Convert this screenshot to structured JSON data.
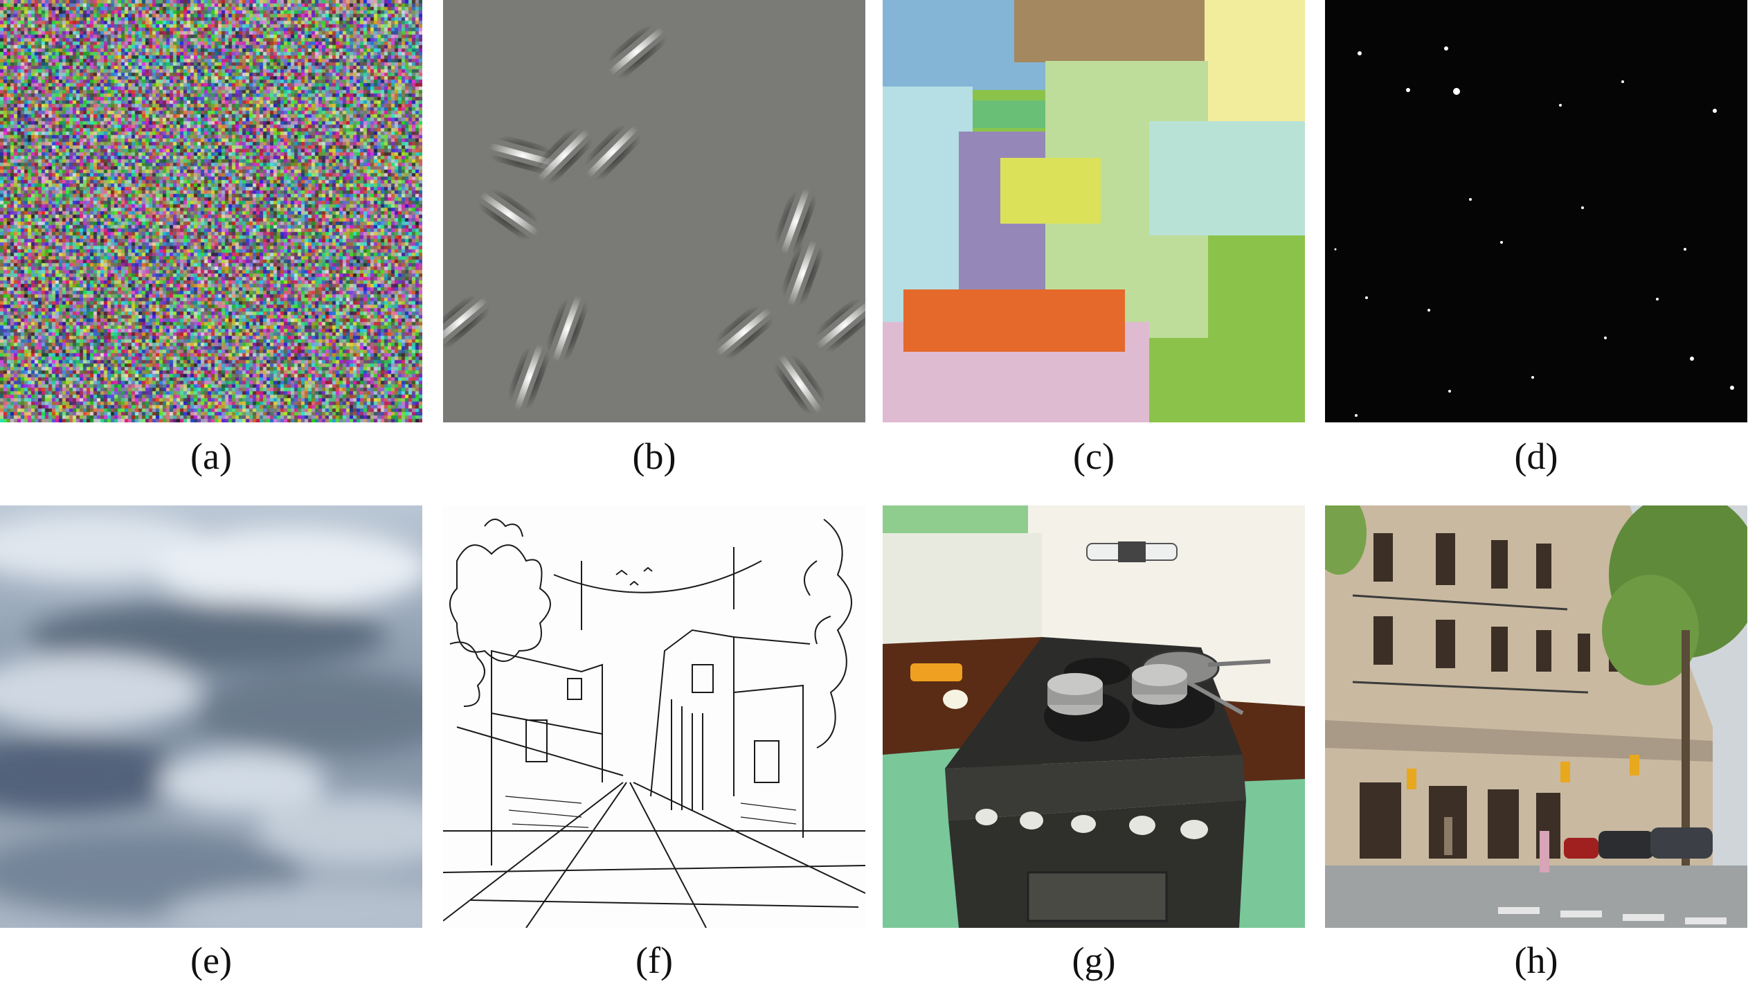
{
  "panels": [
    {
      "label": "(a)",
      "subject": "random color noise"
    },
    {
      "label": "(b)",
      "subject": "gabor patches on gray"
    },
    {
      "label": "(c)",
      "subject": "overlapping colored rectangles (dead leaves)"
    },
    {
      "label": "(d)",
      "subject": "sparse white dots on black"
    },
    {
      "label": "(e)",
      "subject": "cloudy sky photograph"
    },
    {
      "label": "(f)",
      "subject": "ink street sketch"
    },
    {
      "label": "(g)",
      "subject": "rendered kitchen stove"
    },
    {
      "label": "(h)",
      "subject": "city street photograph"
    }
  ],
  "colors": {
    "gray_bg": "#7a7a77",
    "black_bg": "#050505",
    "sky": "#9aa7b5",
    "paper": "#fdfdfd"
  }
}
